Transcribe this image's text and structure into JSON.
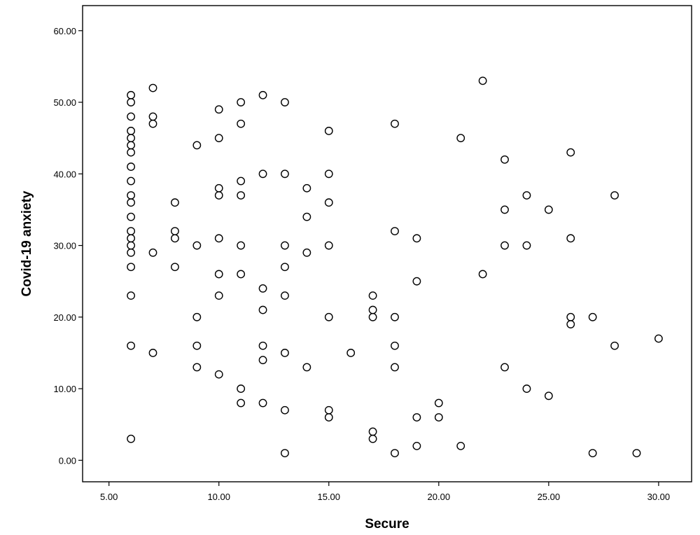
{
  "chart_data": {
    "type": "scatter",
    "title": "",
    "xlabel": "Secure",
    "ylabel": "Covid-19 anxiety",
    "xlim": [
      3.8,
      31.5
    ],
    "ylim": [
      -3.0,
      63.5
    ],
    "x_ticks": [
      5,
      10,
      15,
      20,
      25,
      30
    ],
    "x_tick_labels": [
      "5.00",
      "10.00",
      "15.00",
      "20.00",
      "25.00",
      "30.00"
    ],
    "y_ticks": [
      0,
      10,
      20,
      30,
      40,
      50,
      60
    ],
    "y_tick_labels": [
      "0.00",
      "10.00",
      "20.00",
      "30.00",
      "40.00",
      "50.00",
      "60.00"
    ],
    "grid": false,
    "marker": "open-circle",
    "marker_color": "#000000",
    "points": [
      [
        6,
        51
      ],
      [
        6,
        50
      ],
      [
        6,
        48
      ],
      [
        6,
        46
      ],
      [
        6,
        45
      ],
      [
        6,
        44
      ],
      [
        6,
        43
      ],
      [
        6,
        41
      ],
      [
        6,
        39
      ],
      [
        6,
        37
      ],
      [
        6,
        36
      ],
      [
        6,
        34
      ],
      [
        6,
        32
      ],
      [
        6,
        31
      ],
      [
        6,
        30
      ],
      [
        6,
        29
      ],
      [
        6,
        27
      ],
      [
        6,
        23
      ],
      [
        6,
        16
      ],
      [
        6,
        3
      ],
      [
        7,
        52
      ],
      [
        7,
        48
      ],
      [
        7,
        47
      ],
      [
        7,
        29
      ],
      [
        7,
        15
      ],
      [
        8,
        36
      ],
      [
        8,
        32
      ],
      [
        8,
        31
      ],
      [
        8,
        27
      ],
      [
        9,
        44
      ],
      [
        9,
        30
      ],
      [
        9,
        20
      ],
      [
        9,
        16
      ],
      [
        9,
        13
      ],
      [
        10,
        49
      ],
      [
        10,
        45
      ],
      [
        10,
        38
      ],
      [
        10,
        37
      ],
      [
        10,
        31
      ],
      [
        10,
        26
      ],
      [
        10,
        23
      ],
      [
        10,
        12
      ],
      [
        11,
        50
      ],
      [
        11,
        47
      ],
      [
        11,
        39
      ],
      [
        11,
        37
      ],
      [
        11,
        30
      ],
      [
        11,
        26
      ],
      [
        11,
        10
      ],
      [
        11,
        8
      ],
      [
        12,
        51
      ],
      [
        12,
        40
      ],
      [
        12,
        24
      ],
      [
        12,
        21
      ],
      [
        12,
        16
      ],
      [
        12,
        14
      ],
      [
        12,
        8
      ],
      [
        13,
        50
      ],
      [
        13,
        40
      ],
      [
        13,
        30
      ],
      [
        13,
        27
      ],
      [
        13,
        23
      ],
      [
        13,
        15
      ],
      [
        13,
        7
      ],
      [
        13,
        1
      ],
      [
        14,
        38
      ],
      [
        14,
        34
      ],
      [
        14,
        29
      ],
      [
        14,
        13
      ],
      [
        15,
        46
      ],
      [
        15,
        40
      ],
      [
        15,
        36
      ],
      [
        15,
        30
      ],
      [
        15,
        20
      ],
      [
        15,
        7
      ],
      [
        15,
        6
      ],
      [
        16,
        15
      ],
      [
        17,
        23
      ],
      [
        17,
        21
      ],
      [
        17,
        20
      ],
      [
        17,
        4
      ],
      [
        17,
        3
      ],
      [
        18,
        47
      ],
      [
        18,
        32
      ],
      [
        18,
        20
      ],
      [
        18,
        16
      ],
      [
        18,
        13
      ],
      [
        18,
        1
      ],
      [
        19,
        31
      ],
      [
        19,
        25
      ],
      [
        19,
        6
      ],
      [
        19,
        2
      ],
      [
        20,
        8
      ],
      [
        20,
        6
      ],
      [
        21,
        45
      ],
      [
        21,
        2
      ],
      [
        22,
        53
      ],
      [
        22,
        26
      ],
      [
        23,
        42
      ],
      [
        23,
        35
      ],
      [
        23,
        30
      ],
      [
        23,
        13
      ],
      [
        24,
        37
      ],
      [
        24,
        30
      ],
      [
        24,
        10
      ],
      [
        25,
        35
      ],
      [
        25,
        9
      ],
      [
        26,
        43
      ],
      [
        26,
        31
      ],
      [
        26,
        20
      ],
      [
        26,
        19
      ],
      [
        27,
        20
      ],
      [
        27,
        1
      ],
      [
        28,
        37
      ],
      [
        28,
        16
      ],
      [
        29,
        1
      ],
      [
        30,
        17
      ]
    ]
  }
}
